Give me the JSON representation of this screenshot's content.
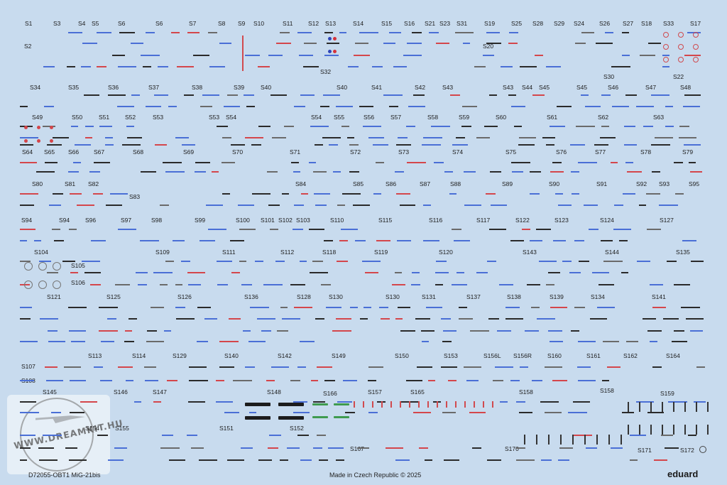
{
  "sheet": {
    "product_code": "D72055-OBT1 MiG-21bis",
    "made_in": "Made in Czech Republic",
    "copyright": "© 2025",
    "brand": "eduard",
    "watermark": "WWW.DREAMKIT.HU",
    "colors": {
      "background": "#c8dbee",
      "blue_marking": "#4a6fd6",
      "red_marking": "#d4464b",
      "dark_marking": "#2a2a2a",
      "green_marking": "#3f9b4f"
    }
  },
  "labels": [
    "S1",
    "S3",
    "S4",
    "S5",
    "S6",
    "S6",
    "S7",
    "S8",
    "S9",
    "S10",
    "S11",
    "S12",
    "S13",
    "S14",
    "S15",
    "S16",
    "S21",
    "S23",
    "S31",
    "S19",
    "S25",
    "S28",
    "S29",
    "S24",
    "S26",
    "S27",
    "S18",
    "S33",
    "S17",
    "S2",
    "S20",
    "S32",
    "S30",
    "S22",
    "S34",
    "S35",
    "S36",
    "S37",
    "S38",
    "S39",
    "S40",
    "S40",
    "S41",
    "S42",
    "S43",
    "S43",
    "S44",
    "S45",
    "S45",
    "S46",
    "S47",
    "S48",
    "S49",
    "S50",
    "S51",
    "S52",
    "S53",
    "S53",
    "S54",
    "S54",
    "S55",
    "S56",
    "S57",
    "S58",
    "S59",
    "S60",
    "S61",
    "S62",
    "S63",
    "S64",
    "S65",
    "S66",
    "S67",
    "S68",
    "S69",
    "S70",
    "S71",
    "S72",
    "S73",
    "S74",
    "S75",
    "S76",
    "S77",
    "S78",
    "S79",
    "S80",
    "S81",
    "S82",
    "S83",
    "S84",
    "S85",
    "S86",
    "S87",
    "S88",
    "S89",
    "S90",
    "S91",
    "S92",
    "S93",
    "S95",
    "S94",
    "S94",
    "S96",
    "S97",
    "S98",
    "S99",
    "S100",
    "S101",
    "S102",
    "S103",
    "S110",
    "S115",
    "S116",
    "S117",
    "S122",
    "S123",
    "S124",
    "S127",
    "S104",
    "S105",
    "S106",
    "S109",
    "S111",
    "S112",
    "S118",
    "S119",
    "S120",
    "S143",
    "S144",
    "S135",
    "S121",
    "S125",
    "S126",
    "S136",
    "S128",
    "S130",
    "S130",
    "S131",
    "S137",
    "S138",
    "S139",
    "S134",
    "S141",
    "S113",
    "S114",
    "S129",
    "S140",
    "S142",
    "S149",
    "S150",
    "S153",
    "S156L",
    "S156R",
    "S160",
    "S161",
    "S162",
    "S164",
    "S107",
    "S108",
    "S145",
    "S146",
    "S147",
    "S148",
    "S166",
    "S157",
    "S165",
    "S158",
    "S158",
    "S159",
    "S154",
    "S155",
    "S151",
    "S152",
    "S167",
    "S170",
    "S171",
    "S172"
  ]
}
